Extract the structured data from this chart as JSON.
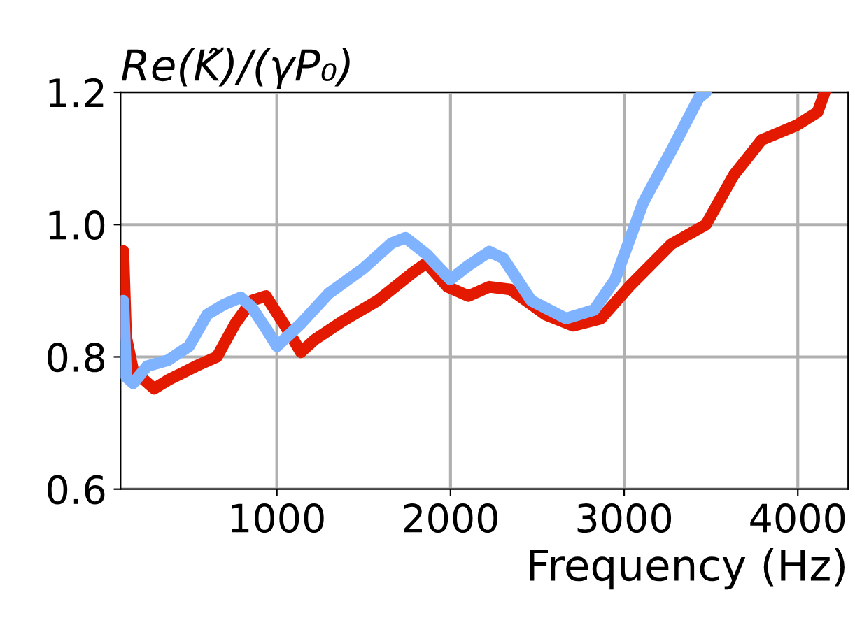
{
  "chart_data": {
    "type": "line",
    "title": "Re(K̃)/(γP₀)",
    "xlabel": "Frequency (Hz)",
    "xlim": [
      100,
      4290
    ],
    "ylim": [
      0.6,
      1.2
    ],
    "xticks": [
      1000,
      2000,
      3000,
      4000
    ],
    "yticks": [
      0.6,
      {
        "value": 0.8,
        "label": "0.8"
      },
      {
        "value": 1.0,
        "label": "1.0"
      },
      1.2
    ],
    "grid": true,
    "line_style": "solid",
    "marker": "none",
    "series": [
      {
        "color": "#e31a00",
        "x": [
          116,
          132,
          172,
          293,
          374,
          534,
          655,
          760,
          856,
          937,
          1057,
          1138,
          1218,
          1379,
          1580,
          1781,
          1862,
          1983,
          2103,
          2224,
          2345,
          2546,
          2707,
          2867,
          3028,
          3270,
          3471,
          3632,
          3792,
          3993,
          4114,
          4155
        ],
        "values": [
          0.96,
          0.83,
          0.78,
          0.752,
          0.765,
          0.786,
          0.8,
          0.85,
          0.885,
          0.892,
          0.843,
          0.807,
          0.826,
          0.854,
          0.885,
          0.927,
          0.942,
          0.906,
          0.892,
          0.906,
          0.902,
          0.864,
          0.847,
          0.858,
          0.906,
          0.97,
          1.0,
          1.075,
          1.128,
          1.15,
          1.17,
          1.2
        ]
      },
      {
        "color": "#80b3ff",
        "x": [
          116,
          132,
          172,
          253,
          374,
          494,
          599,
          695,
          792,
          856,
          937,
          1001,
          1138,
          1299,
          1500,
          1661,
          1741,
          1862,
          1999,
          2103,
          2224,
          2304,
          2465,
          2666,
          2827,
          2948,
          3109,
          3270,
          3431,
          3471
        ],
        "values": [
          0.885,
          0.77,
          0.76,
          0.786,
          0.795,
          0.816,
          0.864,
          0.879,
          0.89,
          0.875,
          0.843,
          0.816,
          0.85,
          0.896,
          0.934,
          0.972,
          0.98,
          0.955,
          0.917,
          0.938,
          0.959,
          0.949,
          0.885,
          0.858,
          0.871,
          0.917,
          1.033,
          1.111,
          1.192,
          1.2
        ]
      }
    ]
  }
}
